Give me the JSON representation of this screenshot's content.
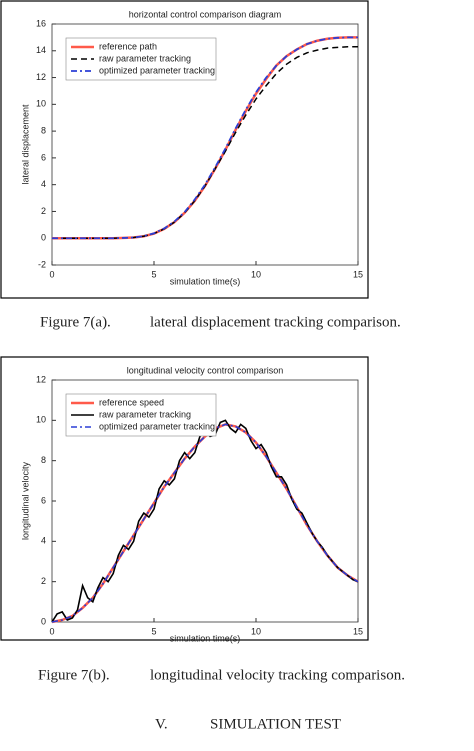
{
  "chart_data": [
    {
      "type": "line",
      "title": "horizontal control comparison diagram",
      "xlabel": "simulation time(s)",
      "ylabel": "lateral displacement",
      "x": [
        0,
        1,
        2,
        3,
        4,
        4.5,
        5,
        5.5,
        6,
        6.5,
        7,
        7.5,
        8,
        8.5,
        9,
        9.5,
        10,
        10.5,
        11,
        11.5,
        12,
        12.5,
        13,
        13.5,
        14,
        14.5,
        15
      ],
      "series": [
        {
          "name": "reference path",
          "color": "#ff5a4a",
          "linestyle": "solid",
          "width": 2.5,
          "values": [
            0,
            0,
            0,
            0,
            0.05,
            0.15,
            0.35,
            0.7,
            1.2,
            1.9,
            2.8,
            3.9,
            5.2,
            6.6,
            8.1,
            9.5,
            10.8,
            11.9,
            12.9,
            13.6,
            14.1,
            14.5,
            14.75,
            14.9,
            14.97,
            15,
            15
          ]
        },
        {
          "name": "raw parameter tracking",
          "color": "#000000",
          "linestyle": "dashed",
          "width": 1.5,
          "values": [
            0,
            0,
            0,
            0,
            0.05,
            0.15,
            0.35,
            0.7,
            1.2,
            1.9,
            2.8,
            3.9,
            5.2,
            6.5,
            7.9,
            9.2,
            10.4,
            11.4,
            12.3,
            13,
            13.5,
            13.85,
            14.05,
            14.2,
            14.25,
            14.3,
            14.3
          ]
        },
        {
          "name": "optimized parameter tracking",
          "color": "#2b3fd6",
          "linestyle": "dashdot",
          "width": 1.8,
          "values": [
            0,
            0,
            0,
            0,
            0.05,
            0.16,
            0.37,
            0.73,
            1.25,
            1.95,
            2.9,
            4.0,
            5.3,
            6.7,
            8.2,
            9.6,
            10.9,
            12.0,
            12.9,
            13.6,
            14.1,
            14.5,
            14.75,
            14.9,
            14.97,
            15,
            15
          ]
        }
      ],
      "xlim": [
        0,
        15
      ],
      "xticks": [
        0,
        5,
        10,
        15
      ],
      "ylim": [
        -2,
        16
      ],
      "yticks": [
        -2,
        0,
        2,
        4,
        6,
        8,
        10,
        12,
        14,
        16
      ],
      "legend": "upper left"
    },
    {
      "type": "line",
      "title": "longitudinal velocity control comparison",
      "xlabel": "simulation time(s)",
      "ylabel": "longitudinal velocity",
      "series": [
        {
          "name": "reference speed",
          "color": "#ff5a4a",
          "linestyle": "solid",
          "width": 2.5,
          "x": [
            0,
            0.5,
            1,
            1.5,
            2,
            2.5,
            3,
            3.5,
            4,
            4.5,
            5,
            5.5,
            6,
            6.5,
            7,
            7.5,
            8,
            8.5,
            9,
            9.5,
            10,
            10.5,
            11,
            11.5,
            12,
            12.5,
            13,
            13.5,
            14,
            14.5,
            15
          ],
          "values": [
            0,
            0.1,
            0.3,
            0.7,
            1.2,
            1.9,
            2.7,
            3.5,
            4.3,
            5.1,
            5.9,
            6.7,
            7.4,
            8.1,
            8.7,
            9.2,
            9.6,
            9.8,
            9.7,
            9.4,
            8.9,
            8.2,
            7.4,
            6.6,
            5.7,
            4.8,
            4.0,
            3.3,
            2.7,
            2.3,
            2.0
          ]
        },
        {
          "name": "raw parameter tracking",
          "color": "#000000",
          "linestyle": "solid",
          "width": 1.6,
          "x": [
            0,
            0.25,
            0.5,
            0.75,
            1,
            1.25,
            1.5,
            1.75,
            2,
            2.25,
            2.5,
            2.75,
            3,
            3.25,
            3.5,
            3.75,
            4,
            4.25,
            4.5,
            4.75,
            5,
            5.25,
            5.5,
            5.75,
            6,
            6.25,
            6.5,
            6.75,
            7,
            7.25,
            7.5,
            7.75,
            8,
            8.25,
            8.5,
            8.75,
            9,
            9.25,
            9.5,
            9.75,
            10,
            10.25,
            10.5,
            10.75,
            11,
            11.25,
            11.5,
            11.75,
            12,
            12.25,
            12.5,
            12.75,
            13,
            13.25,
            13.5,
            13.75,
            14,
            14.25,
            14.5,
            14.75,
            15
          ],
          "values": [
            0,
            0.4,
            0.5,
            0.1,
            0.2,
            0.6,
            1.8,
            1.2,
            1.0,
            1.7,
            2.2,
            2.0,
            2.4,
            3.3,
            3.8,
            3.6,
            4.0,
            5.0,
            5.4,
            5.2,
            5.6,
            6.6,
            7.0,
            6.8,
            7.1,
            8.0,
            8.4,
            8.1,
            8.4,
            9.2,
            9.5,
            9.2,
            9.3,
            9.9,
            10.0,
            9.6,
            9.4,
            9.8,
            9.6,
            9.0,
            8.6,
            8.8,
            8.4,
            7.7,
            7.2,
            7.2,
            6.8,
            6.1,
            5.6,
            5.4,
            4.9,
            4.4,
            4.0,
            3.7,
            3.3,
            3.0,
            2.7,
            2.5,
            2.3,
            2.1,
            2.0
          ]
        },
        {
          "name": "optimized parameter tracking",
          "color": "#2b3fd6",
          "linestyle": "dashdot",
          "width": 1.6,
          "x": [
            0,
            0.5,
            1,
            1.5,
            2,
            2.5,
            3,
            3.5,
            4,
            4.5,
            5,
            5.5,
            6,
            6.5,
            7,
            7.5,
            8,
            8.5,
            9,
            9.5,
            10,
            10.5,
            11,
            11.5,
            12,
            12.5,
            13,
            13.5,
            14,
            14.5,
            15
          ],
          "values": [
            0,
            0.1,
            0.3,
            0.7,
            1.2,
            1.9,
            2.7,
            3.5,
            4.3,
            5.1,
            5.9,
            6.7,
            7.4,
            8.1,
            8.7,
            9.2,
            9.6,
            9.8,
            9.7,
            9.4,
            8.9,
            8.2,
            7.4,
            6.6,
            5.7,
            4.8,
            4.0,
            3.3,
            2.7,
            2.3,
            2.0
          ]
        }
      ],
      "xlim": [
        0,
        15
      ],
      "xticks": [
        0,
        5,
        10,
        15
      ],
      "ylim": [
        0,
        12
      ],
      "yticks": [
        0,
        2,
        4,
        6,
        8,
        10,
        12
      ],
      "legend": "upper left"
    }
  ],
  "captions": [
    {
      "label": "Figure 7(a).",
      "text": "lateral displacement tracking comparison."
    },
    {
      "label": "Figure 7(b).",
      "text": "longitudinal velocity tracking comparison."
    }
  ],
  "section_heading": {
    "number": "V.",
    "title": "SIMULATION TEST"
  }
}
